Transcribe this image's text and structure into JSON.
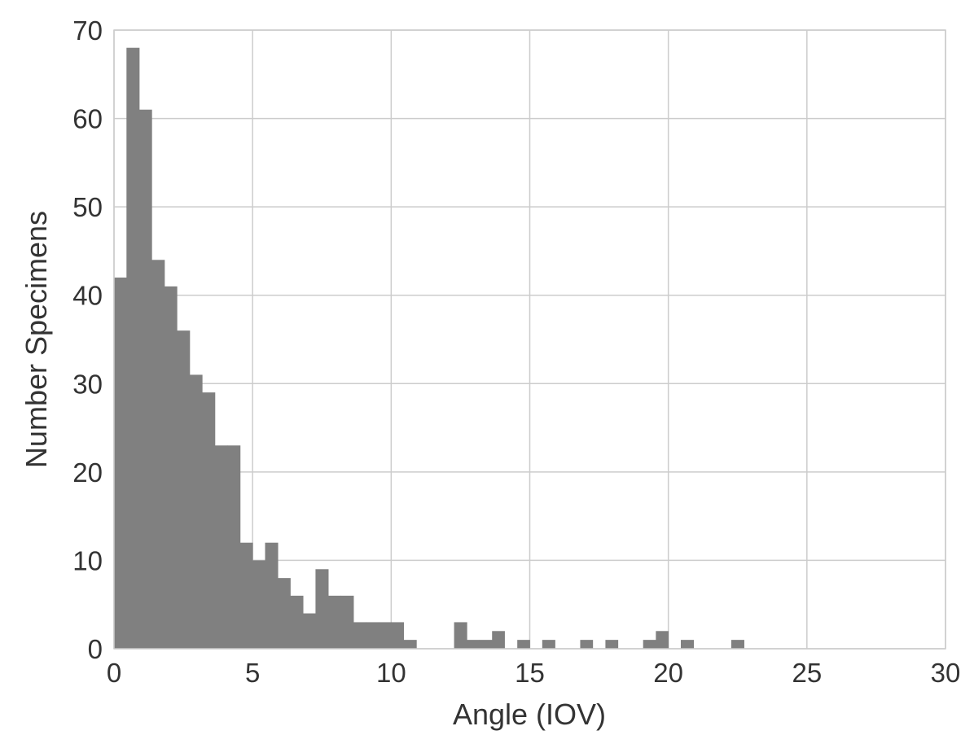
{
  "chart_data": {
    "type": "bar",
    "subtype": "histogram",
    "xlabel": "Angle (IOV)",
    "ylabel": "Number Specimens",
    "xlim": [
      0,
      30
    ],
    "ylim": [
      0,
      70
    ],
    "xticks": [
      "0",
      "5",
      "10",
      "15",
      "20",
      "25",
      "30"
    ],
    "yticks": [
      "0",
      "10",
      "20",
      "30",
      "40",
      "50",
      "60",
      "70"
    ],
    "grid": true,
    "bar_color": "#808080",
    "bins": [
      {
        "start": 0.0,
        "end": 0.45,
        "count": 42
      },
      {
        "start": 0.45,
        "end": 0.91,
        "count": 68
      },
      {
        "start": 0.91,
        "end": 1.36,
        "count": 61
      },
      {
        "start": 1.36,
        "end": 1.82,
        "count": 44
      },
      {
        "start": 1.82,
        "end": 2.27,
        "count": 41
      },
      {
        "start": 2.27,
        "end": 2.73,
        "count": 36
      },
      {
        "start": 2.73,
        "end": 3.18,
        "count": 31
      },
      {
        "start": 3.18,
        "end": 3.64,
        "count": 29
      },
      {
        "start": 3.64,
        "end": 4.09,
        "count": 23
      },
      {
        "start": 4.09,
        "end": 4.55,
        "count": 23
      },
      {
        "start": 4.55,
        "end": 5.0,
        "count": 12
      },
      {
        "start": 5.0,
        "end": 5.45,
        "count": 10
      },
      {
        "start": 5.45,
        "end": 5.91,
        "count": 12
      },
      {
        "start": 5.91,
        "end": 6.36,
        "count": 8
      },
      {
        "start": 6.36,
        "end": 6.82,
        "count": 6
      },
      {
        "start": 6.82,
        "end": 7.27,
        "count": 4
      },
      {
        "start": 7.27,
        "end": 7.73,
        "count": 9
      },
      {
        "start": 7.73,
        "end": 8.18,
        "count": 6
      },
      {
        "start": 8.18,
        "end": 8.64,
        "count": 6
      },
      {
        "start": 8.64,
        "end": 9.09,
        "count": 3
      },
      {
        "start": 9.09,
        "end": 9.55,
        "count": 3
      },
      {
        "start": 9.55,
        "end": 10.0,
        "count": 3
      },
      {
        "start": 10.0,
        "end": 10.45,
        "count": 3
      },
      {
        "start": 10.45,
        "end": 10.91,
        "count": 1
      },
      {
        "start": 12.27,
        "end": 12.73,
        "count": 3
      },
      {
        "start": 12.73,
        "end": 13.18,
        "count": 1
      },
      {
        "start": 13.18,
        "end": 13.64,
        "count": 1
      },
      {
        "start": 13.64,
        "end": 14.09,
        "count": 2
      },
      {
        "start": 14.55,
        "end": 15.0,
        "count": 1
      },
      {
        "start": 15.45,
        "end": 15.91,
        "count": 1
      },
      {
        "start": 16.82,
        "end": 17.27,
        "count": 1
      },
      {
        "start": 17.73,
        "end": 18.18,
        "count": 1
      },
      {
        "start": 19.09,
        "end": 19.55,
        "count": 1
      },
      {
        "start": 19.55,
        "end": 20.0,
        "count": 2
      },
      {
        "start": 20.45,
        "end": 20.91,
        "count": 1
      },
      {
        "start": 22.27,
        "end": 22.73,
        "count": 1
      }
    ]
  }
}
